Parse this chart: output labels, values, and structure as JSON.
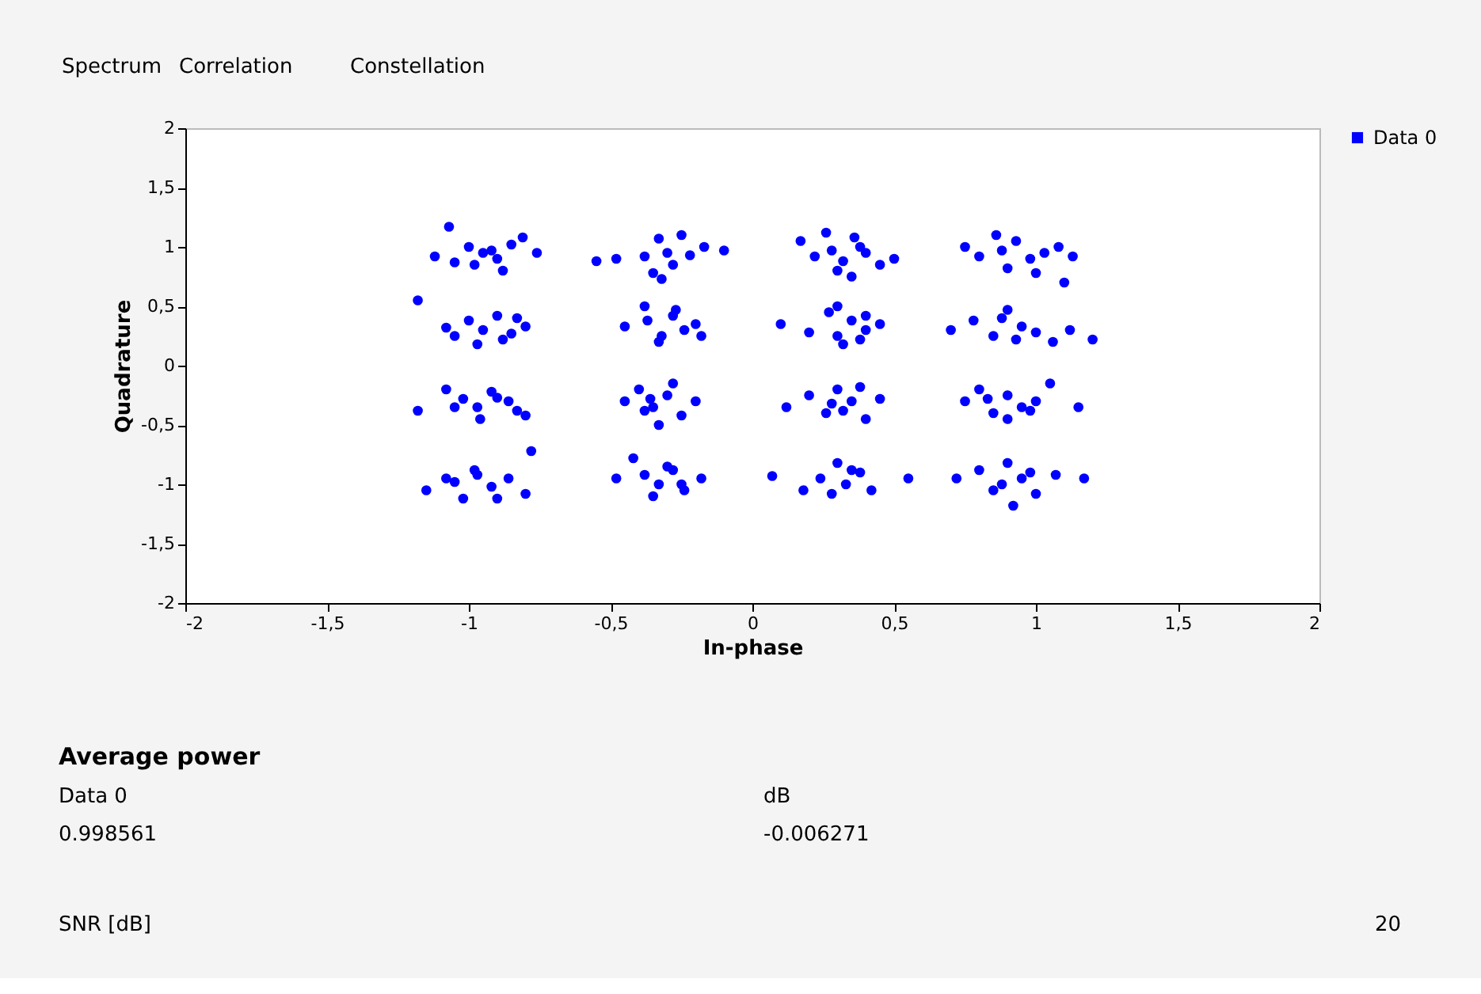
{
  "chart_data": {
    "type": "scatter",
    "xlabel": "In-phase",
    "ylabel": "Quadrature",
    "xlim": [
      -2,
      2
    ],
    "ylim": [
      -2,
      2
    ],
    "xticks": [
      -2,
      {
        "value": -1.5,
        "label": "-1,5"
      },
      -1,
      {
        "value": -0.5,
        "label": "-0,5"
      },
      0,
      {
        "value": 0.5,
        "label": "0,5"
      },
      1,
      {
        "value": 1.5,
        "label": "1,5"
      },
      2
    ],
    "yticks": [
      -2,
      {
        "value": -1.5,
        "label": "-1,5"
      },
      -1,
      {
        "value": -0.5,
        "label": "-0,5"
      },
      0,
      {
        "value": 0.5,
        "label": "0,5"
      },
      1,
      {
        "value": 1.5,
        "label": "1,5"
      },
      2
    ],
    "grid": false,
    "legend": "top right",
    "marker": "circle",
    "annotations": [
      "Spectrum",
      "Correlation",
      "Constellation",
      "Average power",
      "Data 0",
      "dB",
      "0.998561",
      "-0.006271",
      "SNR [dB]",
      "20"
    ],
    "series": [
      {
        "name": "Data 0",
        "color": "#0000ff",
        "x": [
          -1.07,
          -1.12,
          -1.0,
          -0.95,
          -0.9,
          -0.85,
          -0.98,
          -0.92,
          -0.81,
          -0.76,
          -1.05,
          -0.88,
          -0.55,
          -0.48,
          -0.38,
          -0.33,
          -0.3,
          -0.25,
          -0.22,
          -0.35,
          -0.28,
          -0.17,
          -0.1,
          -0.32,
          0.17,
          0.22,
          0.28,
          0.32,
          0.36,
          0.4,
          0.3,
          0.45,
          0.5,
          0.26,
          0.35,
          0.38,
          0.75,
          0.8,
          0.88,
          0.93,
          0.98,
          1.03,
          0.9,
          1.08,
          1.13,
          0.86,
          1.0,
          1.1,
          -1.18,
          -1.05,
          -1.0,
          -0.95,
          -0.9,
          -0.85,
          -0.8,
          -0.97,
          -0.88,
          -1.08,
          -0.83,
          -0.45,
          -0.38,
          -0.32,
          -0.28,
          -0.24,
          -0.2,
          -0.33,
          -0.37,
          -0.27,
          -0.18,
          0.1,
          0.2,
          0.27,
          0.3,
          0.35,
          0.4,
          0.45,
          0.32,
          0.38,
          0.3,
          0.4,
          0.7,
          0.78,
          0.85,
          0.9,
          0.95,
          1.0,
          1.06,
          0.88,
          0.93,
          1.2,
          1.12,
          -1.18,
          -1.08,
          -1.02,
          -0.97,
          -0.92,
          -0.86,
          -0.8,
          -0.96,
          -1.05,
          -0.9,
          -0.83,
          -0.45,
          -0.4,
          -0.35,
          -0.3,
          -0.25,
          -0.2,
          -0.33,
          -0.28,
          -0.38,
          -0.36,
          0.12,
          0.2,
          0.26,
          0.3,
          0.35,
          0.4,
          0.45,
          0.32,
          0.38,
          0.28,
          0.75,
          0.8,
          0.85,
          0.9,
          0.95,
          1.0,
          1.05,
          1.15,
          0.9,
          0.98,
          0.83,
          -1.15,
          -1.08,
          -1.02,
          -0.97,
          -0.92,
          -0.86,
          -0.8,
          -0.98,
          -1.05,
          -0.9,
          -0.78,
          -0.48,
          -0.42,
          -0.38,
          -0.33,
          -0.28,
          -0.24,
          -0.18,
          -0.35,
          -0.3,
          -0.25,
          0.07,
          0.18,
          0.24,
          0.3,
          0.33,
          0.38,
          0.42,
          0.55,
          0.28,
          0.35,
          0.72,
          0.8,
          0.85,
          0.9,
          0.95,
          1.0,
          1.07,
          1.17,
          0.92,
          0.88,
          0.98
        ],
        "values": [
          1.17,
          0.92,
          1.0,
          0.95,
          0.9,
          1.02,
          0.85,
          0.97,
          1.08,
          0.95,
          0.87,
          0.8,
          0.88,
          0.9,
          0.92,
          1.07,
          0.95,
          1.1,
          0.93,
          0.78,
          0.85,
          1.0,
          0.97,
          0.73,
          1.05,
          0.92,
          0.97,
          0.88,
          1.08,
          0.95,
          0.8,
          0.85,
          0.9,
          1.12,
          0.75,
          1.0,
          1.0,
          0.92,
          0.97,
          1.05,
          0.9,
          0.95,
          0.82,
          1.0,
          0.92,
          1.1,
          0.78,
          0.7,
          0.55,
          0.25,
          0.38,
          0.3,
          0.42,
          0.27,
          0.33,
          0.18,
          0.22,
          0.32,
          0.4,
          0.33,
          0.5,
          0.25,
          0.42,
          0.3,
          0.35,
          0.2,
          0.38,
          0.47,
          0.25,
          0.35,
          0.28,
          0.45,
          0.25,
          0.38,
          0.3,
          0.35,
          0.18,
          0.22,
          0.5,
          0.42,
          0.3,
          0.38,
          0.25,
          0.47,
          0.33,
          0.28,
          0.2,
          0.4,
          0.22,
          0.22,
          0.3,
          -0.38,
          -0.2,
          -0.28,
          -0.35,
          -0.22,
          -0.3,
          -0.42,
          -0.45,
          -0.35,
          -0.27,
          -0.38,
          -0.3,
          -0.2,
          -0.35,
          -0.25,
          -0.42,
          -0.3,
          -0.5,
          -0.15,
          -0.38,
          -0.28,
          -0.35,
          -0.25,
          -0.4,
          -0.2,
          -0.3,
          -0.45,
          -0.28,
          -0.38,
          -0.18,
          -0.32,
          -0.3,
          -0.2,
          -0.4,
          -0.25,
          -0.35,
          -0.3,
          -0.15,
          -0.35,
          -0.45,
          -0.38,
          -0.28,
          -1.05,
          -0.95,
          -1.12,
          -0.92,
          -1.02,
          -0.95,
          -1.08,
          -0.88,
          -0.98,
          -1.12,
          -0.72,
          -0.95,
          -0.78,
          -0.92,
          -1.0,
          -0.88,
          -1.05,
          -0.95,
          -1.1,
          -0.85,
          -1.0,
          -0.93,
          -1.05,
          -0.95,
          -0.82,
          -1.0,
          -0.9,
          -1.05,
          -0.95,
          -1.08,
          -0.88,
          -0.95,
          -0.88,
          -1.05,
          -0.82,
          -0.95,
          -1.08,
          -0.92,
          -0.95,
          -1.18,
          -1.0,
          -0.9
        ]
      }
    ]
  }
}
